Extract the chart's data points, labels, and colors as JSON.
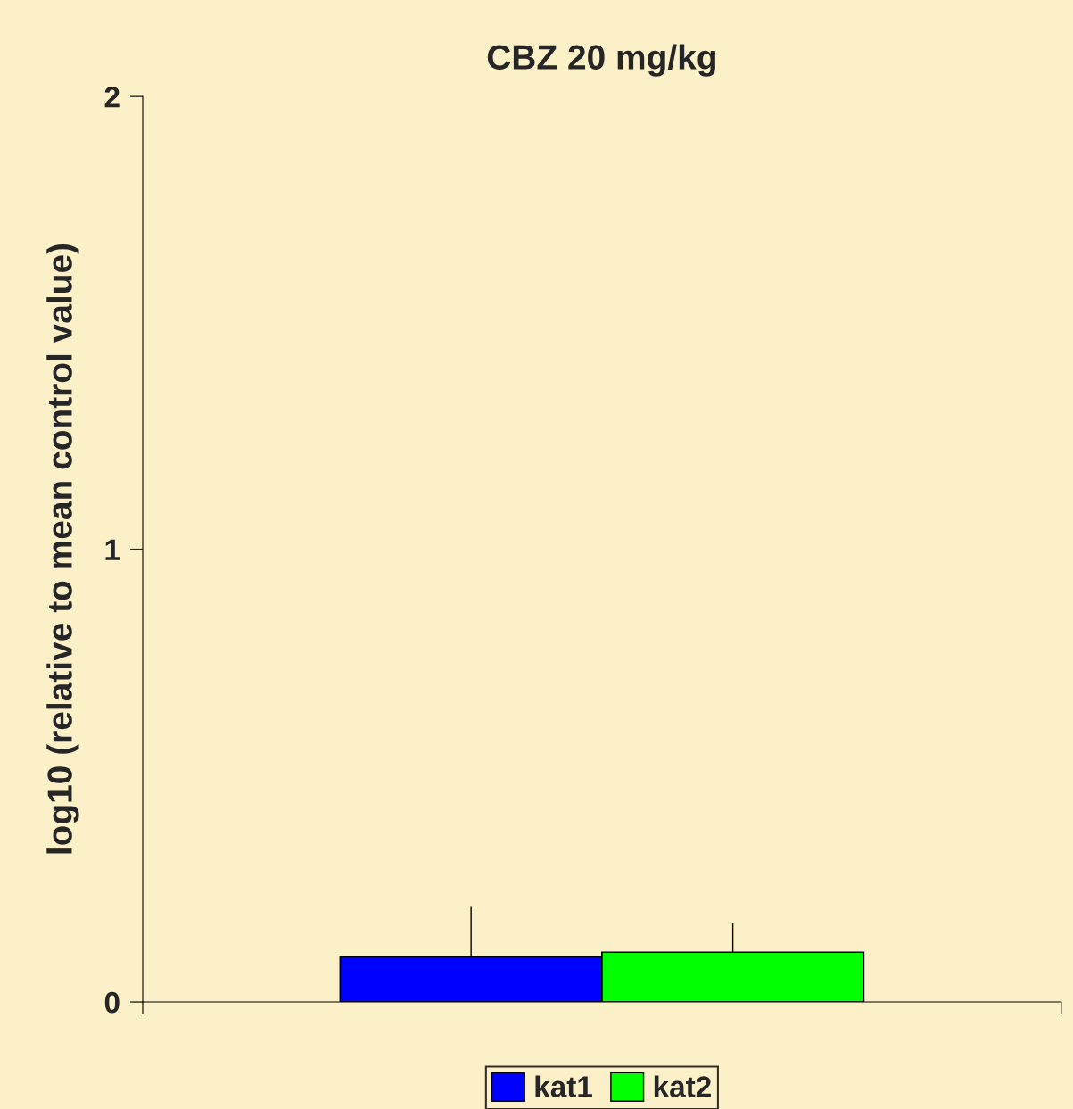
{
  "chart_data": {
    "type": "bar",
    "title": "CBZ 20 mg/kg",
    "ylabel": "log10 (relative to mean control value)",
    "categories": [
      null
    ],
    "series": [
      {
        "name": "kat1",
        "color": "#0000ff",
        "values": [
          0.1
        ],
        "errors": [
          [
            0.1,
            0.21
          ]
        ]
      },
      {
        "name": "kat2",
        "color": "#00ff00",
        "values": [
          0.11
        ],
        "errors": [
          [
            0.11,
            0.174
          ]
        ]
      }
    ],
    "ylim": [
      0,
      2
    ],
    "yticks": [
      0,
      1,
      2
    ],
    "grid": false,
    "legend": "bottom"
  }
}
